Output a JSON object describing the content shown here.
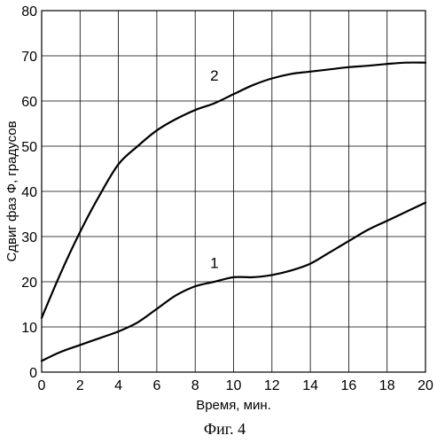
{
  "chart_data": {
    "type": "line",
    "xlabel": "Время, мин.",
    "ylabel": "Сдвиг фаз Ф, градусов",
    "caption": "Фиг. 4",
    "xlim": [
      0,
      20
    ],
    "ylim": [
      0,
      80
    ],
    "xticks": [
      0,
      2,
      4,
      6,
      8,
      10,
      12,
      14,
      16,
      18,
      20
    ],
    "yticks": [
      0,
      10,
      20,
      30,
      40,
      50,
      60,
      70,
      80
    ],
    "grid": true,
    "series": [
      {
        "name": "1",
        "x": [
          0,
          1,
          2,
          3,
          4,
          5,
          6,
          7,
          8,
          9,
          10,
          11,
          12,
          13,
          14,
          15,
          16,
          17,
          18,
          19,
          20
        ],
        "y": [
          2.5,
          4.5,
          6,
          7.5,
          9,
          11,
          14,
          17,
          19,
          20,
          21,
          21,
          21.5,
          22.5,
          24,
          26.5,
          29,
          31.5,
          33.5,
          35.5,
          37.5
        ],
        "label_at": [
          9,
          23
        ]
      },
      {
        "name": "2",
        "x": [
          0,
          1,
          2,
          3,
          4,
          5,
          6,
          7,
          8,
          9,
          10,
          11,
          12,
          13,
          14,
          15,
          16,
          17,
          18,
          19,
          20
        ],
        "y": [
          12,
          22,
          31,
          39,
          46,
          50,
          53.5,
          56,
          58,
          59.5,
          61.5,
          63.5,
          65,
          66,
          66.5,
          67,
          67.5,
          67.8,
          68.2,
          68.5,
          68.5
        ],
        "label_at": [
          9,
          64.5
        ]
      }
    ]
  }
}
